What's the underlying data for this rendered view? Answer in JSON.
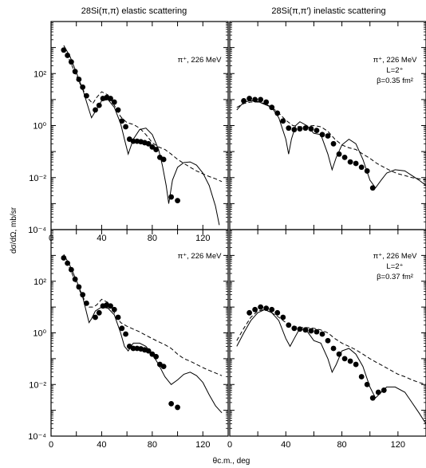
{
  "figure": {
    "ylabel": "dσ/dΩ, mb/sr",
    "xlabel": "θc.m., deg"
  },
  "chart_data": [
    {
      "type": "scatter",
      "title": "28Si(π,π) elastic scattering",
      "annotation": [
        "π⁺, 226 MeV"
      ],
      "xlim": [
        0,
        140
      ],
      "ylim": [
        0.0001,
        10000
      ],
      "yscale": "log",
      "x_ticks": [
        "0",
        "40",
        "80",
        "120"
      ],
      "y_ticks": [
        "10⁻⁴",
        "10⁻²",
        "10⁰",
        "10²"
      ],
      "series": [
        {
          "style": "markers",
          "x": [
            10,
            13,
            16,
            19,
            22,
            25,
            28,
            35,
            38,
            41,
            44,
            47,
            50,
            53,
            56,
            59,
            62,
            65,
            68,
            71,
            74,
            77,
            80,
            83,
            86,
            89,
            95,
            100
          ],
          "y": [
            800,
            500,
            280,
            120,
            60,
            30,
            14,
            4,
            6,
            11,
            12,
            11,
            8,
            4,
            1.5,
            0.9,
            0.3,
            0.25,
            0.25,
            0.24,
            0.22,
            0.2,
            0.15,
            0.12,
            0.06,
            0.05,
            0.0018,
            0.0013
          ]
        },
        {
          "style": "solid",
          "x": [
            10,
            15,
            20,
            25,
            30,
            32,
            35,
            40,
            45,
            50,
            55,
            58,
            61,
            65,
            70,
            75,
            80,
            85,
            88,
            91,
            93,
            96,
            100,
            105,
            110,
            115,
            120,
            125,
            130,
            133
          ],
          "y": [
            1200,
            450,
            110,
            25,
            4,
            2,
            3.5,
            9,
            10,
            5,
            1.2,
            0.3,
            0.08,
            0.3,
            0.7,
            0.8,
            0.45,
            0.12,
            0.03,
            0.005,
            0.001,
            0.008,
            0.025,
            0.038,
            0.04,
            0.03,
            0.015,
            0.005,
            0.0008,
            0.00015
          ]
        },
        {
          "style": "dashed",
          "x": [
            10,
            15,
            20,
            25,
            30,
            33,
            36,
            40,
            45,
            50,
            55,
            60,
            65,
            70,
            75,
            80,
            85,
            90,
            95,
            100,
            105,
            110,
            115,
            120,
            125,
            130,
            135
          ],
          "y": [
            1000,
            300,
            80,
            25,
            10,
            7,
            12,
            20,
            15,
            6,
            2.2,
            1.3,
            1.1,
            0.8,
            0.45,
            0.22,
            0.15,
            0.12,
            0.08,
            0.05,
            0.035,
            0.025,
            0.018,
            0.014,
            0.011,
            0.009,
            0.007
          ]
        }
      ]
    },
    {
      "type": "scatter",
      "title": "28Si(π,π′) inelastic scattering",
      "annotation": [
        "π⁺, 226 MeV",
        "L=2⁺",
        "β=0.35 fm²"
      ],
      "xlim": [
        0,
        140
      ],
      "ylim": [
        0.0001,
        10000
      ],
      "yscale": "log",
      "x_ticks": [],
      "y_ticks": [],
      "series": [
        {
          "style": "markers",
          "x": [
            10,
            14,
            18,
            22,
            26,
            30,
            34,
            38,
            42,
            46,
            50,
            54,
            58,
            62,
            66,
            70,
            74,
            78,
            82,
            86,
            90,
            94,
            98,
            102
          ],
          "y": [
            9,
            11,
            10,
            10,
            8,
            5,
            3,
            1.5,
            0.8,
            0.7,
            0.75,
            0.8,
            0.75,
            0.65,
            0.45,
            0.4,
            0.2,
            0.08,
            0.06,
            0.04,
            0.035,
            0.025,
            0.018,
            0.004
          ]
        },
        {
          "style": "solid",
          "x": [
            5,
            10,
            15,
            20,
            25,
            30,
            35,
            40,
            42,
            44,
            47,
            50,
            55,
            60,
            65,
            70,
            73,
            76,
            80,
            85,
            90,
            95,
            100,
            104,
            108,
            112,
            118,
            125,
            130,
            135,
            140
          ],
          "y": [
            4,
            8,
            9,
            8.5,
            6.5,
            5,
            2,
            0.3,
            0.08,
            0.3,
            1,
            1.4,
            1,
            0.5,
            0.45,
            0.08,
            0.02,
            0.06,
            0.18,
            0.3,
            0.2,
            0.05,
            0.008,
            0.004,
            0.008,
            0.015,
            0.02,
            0.018,
            0.012,
            0.008,
            0.005
          ]
        },
        {
          "style": "dashed",
          "x": [
            5,
            10,
            15,
            20,
            25,
            30,
            35,
            40,
            45,
            50,
            55,
            60,
            65,
            70,
            75,
            80,
            85,
            90,
            95,
            100,
            105,
            110,
            115,
            120,
            125,
            130,
            135,
            140
          ],
          "y": [
            5,
            7,
            8,
            8,
            7,
            5,
            3,
            1.6,
            1,
            0.9,
            0.95,
            1,
            0.9,
            0.6,
            0.3,
            0.18,
            0.14,
            0.12,
            0.08,
            0.055,
            0.035,
            0.025,
            0.018,
            0.014,
            0.012,
            0.01,
            0.009,
            0.008
          ]
        }
      ]
    },
    {
      "type": "scatter",
      "title": "",
      "annotation": [
        "π⁺, 226 MeV"
      ],
      "xlim": [
        0,
        140
      ],
      "ylim": [
        0.0001,
        10000
      ],
      "yscale": "log",
      "x_ticks": [
        "0",
        "40",
        "80",
        "120"
      ],
      "y_ticks": [
        "10⁻⁴",
        "10⁻²",
        "10⁰",
        "10²"
      ],
      "series": [
        {
          "style": "markers",
          "x": [
            10,
            13,
            16,
            19,
            22,
            25,
            28,
            35,
            38,
            41,
            44,
            47,
            50,
            53,
            56,
            59,
            62,
            65,
            68,
            71,
            74,
            77,
            80,
            83,
            86,
            89,
            95,
            100
          ],
          "y": [
            800,
            500,
            280,
            120,
            60,
            30,
            14,
            4,
            6,
            11,
            12,
            11,
            8,
            4,
            1.5,
            0.9,
            0.3,
            0.25,
            0.25,
            0.24,
            0.22,
            0.2,
            0.15,
            0.12,
            0.06,
            0.05,
            0.0018,
            0.0013
          ]
        },
        {
          "style": "solid",
          "x": [
            10,
            15,
            20,
            25,
            30,
            32,
            35,
            40,
            45,
            50,
            55,
            58,
            61,
            65,
            70,
            75,
            80,
            85,
            90,
            95,
            100,
            105,
            110,
            115,
            120,
            125,
            130,
            135
          ],
          "y": [
            1100,
            400,
            110,
            25,
            2.5,
            3.5,
            7,
            10,
            9,
            5,
            1,
            0.3,
            0.2,
            0.4,
            0.4,
            0.3,
            0.15,
            0.06,
            0.02,
            0.01,
            0.015,
            0.025,
            0.03,
            0.022,
            0.012,
            0.004,
            0.0015,
            0.0008
          ]
        },
        {
          "style": "dashed",
          "x": [
            10,
            15,
            20,
            25,
            30,
            33,
            36,
            40,
            45,
            50,
            55,
            60,
            65,
            70,
            75,
            80,
            85,
            90,
            95,
            100,
            105,
            110,
            115,
            120,
            125,
            130,
            135
          ],
          "y": [
            1000,
            300,
            80,
            25,
            10,
            10,
            12,
            20,
            15,
            6,
            2.5,
            1.8,
            1.4,
            1.1,
            0.8,
            0.6,
            0.45,
            0.35,
            0.25,
            0.15,
            0.1,
            0.08,
            0.06,
            0.045,
            0.035,
            0.028,
            0.022
          ]
        }
      ]
    },
    {
      "type": "scatter",
      "title": "",
      "annotation": [
        "π⁺, 226 MeV",
        "L=2⁺",
        "β=0.37 fm²"
      ],
      "xlim": [
        0,
        140
      ],
      "ylim": [
        0.0001,
        10000
      ],
      "yscale": "log",
      "x_ticks": [
        "0",
        "40",
        "80",
        "120"
      ],
      "y_ticks": [],
      "series": [
        {
          "style": "markers",
          "x": [
            14,
            18,
            22,
            26,
            30,
            34,
            38,
            42,
            46,
            50,
            54,
            58,
            62,
            66,
            70,
            74,
            78,
            82,
            86,
            90,
            94,
            98,
            102,
            106,
            110
          ],
          "y": [
            6,
            8,
            10,
            9,
            8,
            6,
            4,
            2,
            1.5,
            1.4,
            1.3,
            1.2,
            1.1,
            0.9,
            0.5,
            0.25,
            0.15,
            0.1,
            0.08,
            0.06,
            0.02,
            0.01,
            0.003,
            0.005,
            0.006
          ]
        },
        {
          "style": "solid",
          "x": [
            5,
            10,
            15,
            20,
            25,
            30,
            35,
            40,
            43,
            46,
            50,
            55,
            60,
            65,
            70,
            73,
            76,
            80,
            85,
            90,
            95,
            100,
            104,
            108,
            112,
            118,
            125,
            130,
            135,
            140
          ],
          "y": [
            0.3,
            1,
            3,
            6,
            8,
            6,
            3,
            0.6,
            0.3,
            0.6,
            1.5,
            1.2,
            0.5,
            0.4,
            0.1,
            0.03,
            0.06,
            0.2,
            0.25,
            0.15,
            0.05,
            0.008,
            0.003,
            0.005,
            0.008,
            0.008,
            0.005,
            0.002,
            0.0008,
            0.0003
          ]
        },
        {
          "style": "dashed",
          "x": [
            5,
            10,
            15,
            20,
            25,
            30,
            35,
            40,
            45,
            50,
            55,
            60,
            65,
            70,
            75,
            80,
            85,
            90,
            95,
            100,
            105,
            110,
            115,
            120,
            125,
            130,
            135,
            140
          ],
          "y": [
            0.5,
            1.5,
            4,
            7,
            8,
            6,
            4,
            2.5,
            1.8,
            1.6,
            1.6,
            1.5,
            1.3,
            1,
            0.6,
            0.4,
            0.3,
            0.22,
            0.15,
            0.1,
            0.07,
            0.05,
            0.035,
            0.025,
            0.02,
            0.015,
            0.012,
            0.01
          ]
        }
      ]
    }
  ]
}
